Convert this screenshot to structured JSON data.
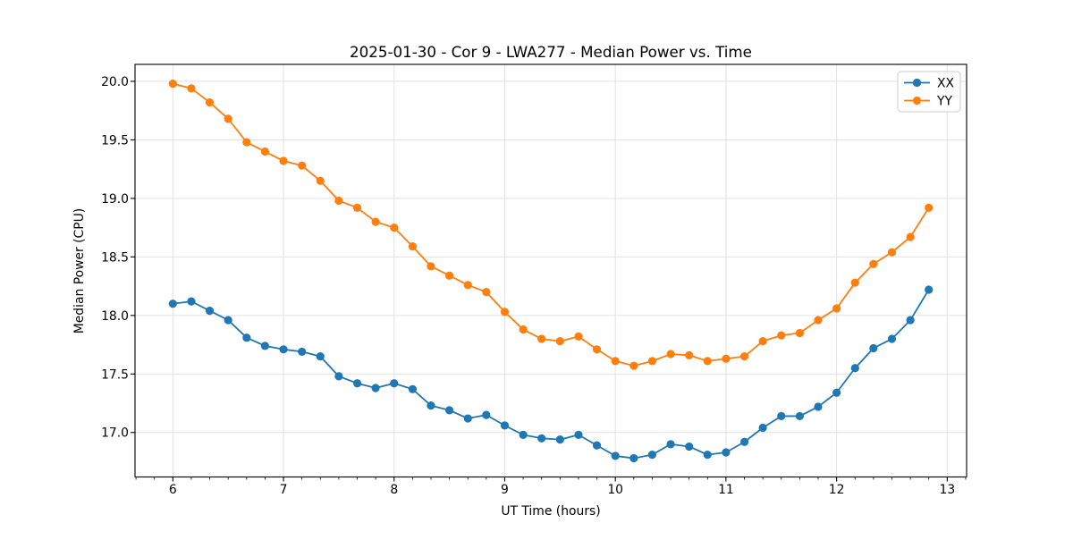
{
  "figure": {
    "background": "#ffffff",
    "text_color": "#000000",
    "grid_color": "#e2e2e2",
    "spine_color": "#000000"
  },
  "chart_data": {
    "type": "line",
    "title": "2025-01-30 - Cor 9 - LWA277 - Median Power vs. Time",
    "xlabel": "UT Time (hours)",
    "ylabel": "Median Power (CPU)",
    "x": [
      6.0,
      6.167,
      6.333,
      6.5,
      6.667,
      6.833,
      7.0,
      7.167,
      7.333,
      7.5,
      7.667,
      7.833,
      8.0,
      8.167,
      8.333,
      8.5,
      8.667,
      8.833,
      9.0,
      9.167,
      9.333,
      9.5,
      9.667,
      9.833,
      10.0,
      10.167,
      10.333,
      10.5,
      10.667,
      10.833,
      11.0,
      11.167,
      11.333,
      11.5,
      11.667,
      11.833,
      12.0,
      12.167,
      12.333,
      12.5,
      12.667,
      12.833
    ],
    "series": [
      {
        "name": "XX",
        "color": "#1f77b4",
        "values": [
          18.1,
          18.12,
          18.04,
          17.96,
          17.81,
          17.74,
          17.71,
          17.69,
          17.65,
          17.48,
          17.42,
          17.38,
          17.42,
          17.37,
          17.23,
          17.19,
          17.12,
          17.15,
          17.06,
          16.98,
          16.95,
          16.94,
          16.98,
          16.89,
          16.8,
          16.78,
          16.81,
          16.9,
          16.88,
          16.81,
          16.83,
          16.92,
          17.04,
          17.14,
          17.14,
          17.22,
          17.34,
          17.55,
          17.72,
          17.8,
          17.96,
          18.22
        ]
      },
      {
        "name": "YY",
        "color": "#ff7f0e",
        "values": [
          19.98,
          19.94,
          19.82,
          19.68,
          19.48,
          19.4,
          19.32,
          19.28,
          19.15,
          18.98,
          18.92,
          18.8,
          18.75,
          18.59,
          18.42,
          18.34,
          18.26,
          18.2,
          18.03,
          17.88,
          17.8,
          17.78,
          17.82,
          17.71,
          17.61,
          17.57,
          17.61,
          17.67,
          17.66,
          17.61,
          17.63,
          17.65,
          17.78,
          17.83,
          17.85,
          17.96,
          18.06,
          18.28,
          18.44,
          18.54,
          18.67,
          18.92
        ]
      }
    ],
    "xlim": [
      5.658,
      13.175
    ],
    "ylim": [
      16.62,
      20.145
    ],
    "xticks": [
      6,
      7,
      8,
      9,
      10,
      11,
      12,
      13
    ],
    "yticks": [
      17.0,
      17.5,
      18.0,
      18.5,
      19.0,
      19.5,
      20.0
    ],
    "minor_xtick_step": 0.166667,
    "grid": true,
    "legend": {
      "position": "upper right",
      "entries": [
        "XX",
        "YY"
      ]
    }
  }
}
